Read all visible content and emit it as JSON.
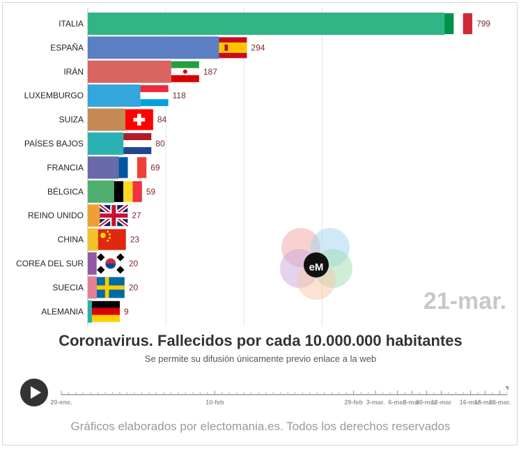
{
  "chart_data": {
    "type": "bar",
    "orientation": "horizontal",
    "title": "Coronavirus. Fallecidos por cada 10.000.000 habitantes",
    "subtitle": "Se permite su difusión únicamente previo enlace a la web",
    "date_label": "21-mar.",
    "xlim": [
      0,
      880
    ],
    "grid": true,
    "categories": [
      "ITALIA",
      "ESPAÑA",
      "IRÁN",
      "LUXEMBURGO",
      "SUIZA",
      "PAÍSES BAJOS",
      "FRANCIA",
      "BÉLGICA",
      "REINO UNIDO",
      "CHINA",
      "COREA DEL SUR",
      "SUECIA",
      "ALEMANIA"
    ],
    "values": [
      799,
      294,
      187,
      118,
      84,
      80,
      69,
      59,
      27,
      23,
      20,
      20,
      9
    ],
    "value_labels": [
      "799",
      "294",
      "187",
      "118",
      "84",
      "80",
      "69",
      "59",
      "27",
      "23",
      "20",
      "20",
      "9"
    ],
    "colors": [
      "#32b585",
      "#5b7fc2",
      "#d96560",
      "#33a6dc",
      "#c48a55",
      "#2cb1b3",
      "#6a6aab",
      "#4fae6e",
      "#f0a033",
      "#f5c12a",
      "#9458a8",
      "#e47f98",
      "#2ab0a8"
    ],
    "flags": [
      "italy-flag",
      "spain-flag",
      "iran-flag",
      "luxembourg-flag",
      "switzerland-flag",
      "netherlands-flag",
      "france-flag",
      "belgium-flag",
      "uk-flag",
      "china-flag",
      "south-korea-flag",
      "sweden-flag",
      "germany-flag"
    ]
  },
  "timeline": {
    "labels": [
      "20-ene.",
      "10-feb",
      "29-feb",
      "3-mar.",
      "6-mar.",
      "8-mar.",
      "10-mar.",
      "12-mar",
      "16-mar.",
      "18-mar.",
      "20-mar."
    ],
    "positions": [
      0,
      21,
      40,
      43,
      46,
      48,
      50,
      52,
      56,
      58,
      60
    ],
    "range": [
      0,
      61
    ],
    "progress": 61
  },
  "logo": {
    "text": "eM"
  },
  "footer": "Gráficos elaborados por electomania.es. Todos los derechos reservados"
}
